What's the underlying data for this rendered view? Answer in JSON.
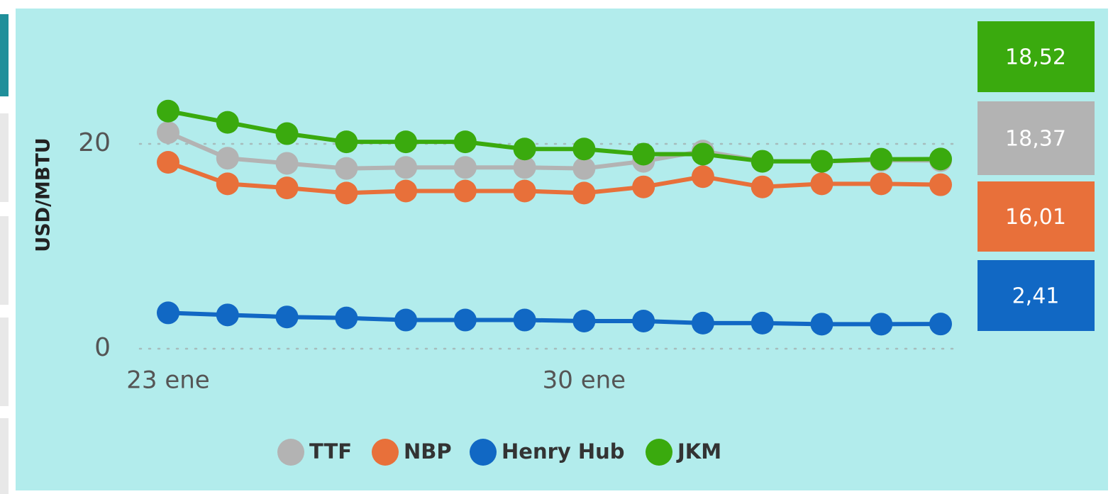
{
  "chart_data": {
    "type": "line",
    "y_label": "USD/MBTU",
    "categories": [
      "23 ene",
      null,
      null,
      null,
      null,
      null,
      null,
      "30 ene",
      null,
      null,
      null,
      null,
      null,
      null
    ],
    "series": [
      {
        "name": "TTF",
        "color": "#b3b3b3",
        "values": [
          21.1,
          18.6,
          18.1,
          17.6,
          17.7,
          17.7,
          17.7,
          17.6,
          18.3,
          19.3,
          18.3,
          18.3,
          18.4,
          18.37
        ]
      },
      {
        "name": "NBP",
        "color": "#e8703a",
        "values": [
          18.2,
          16.1,
          15.7,
          15.2,
          15.4,
          15.4,
          15.4,
          15.2,
          15.8,
          16.8,
          15.8,
          16.1,
          16.1,
          16.01
        ]
      },
      {
        "name": "Henry Hub",
        "color": "#1168c4",
        "values": [
          3.5,
          3.3,
          3.1,
          3.0,
          2.8,
          2.8,
          2.8,
          2.7,
          2.7,
          2.5,
          2.5,
          2.4,
          2.4,
          2.41
        ]
      },
      {
        "name": "JKM",
        "color": "#3aaa0e",
        "values": [
          23.2,
          22.1,
          21.0,
          20.2,
          20.2,
          20.2,
          19.5,
          19.5,
          19.0,
          19.0,
          18.3,
          18.3,
          18.5,
          18.52
        ]
      }
    ],
    "cards": [
      {
        "label": "18,52",
        "color": "#3aaa0e"
      },
      {
        "label": "18,37",
        "color": "#b3b3b3"
      },
      {
        "label": "16,01",
        "color": "#e8703a"
      },
      {
        "label": "2,41",
        "color": "#1168c4"
      }
    ],
    "ylim": [
      0,
      25
    ],
    "yticks": [
      0,
      20
    ],
    "grid": true
  }
}
